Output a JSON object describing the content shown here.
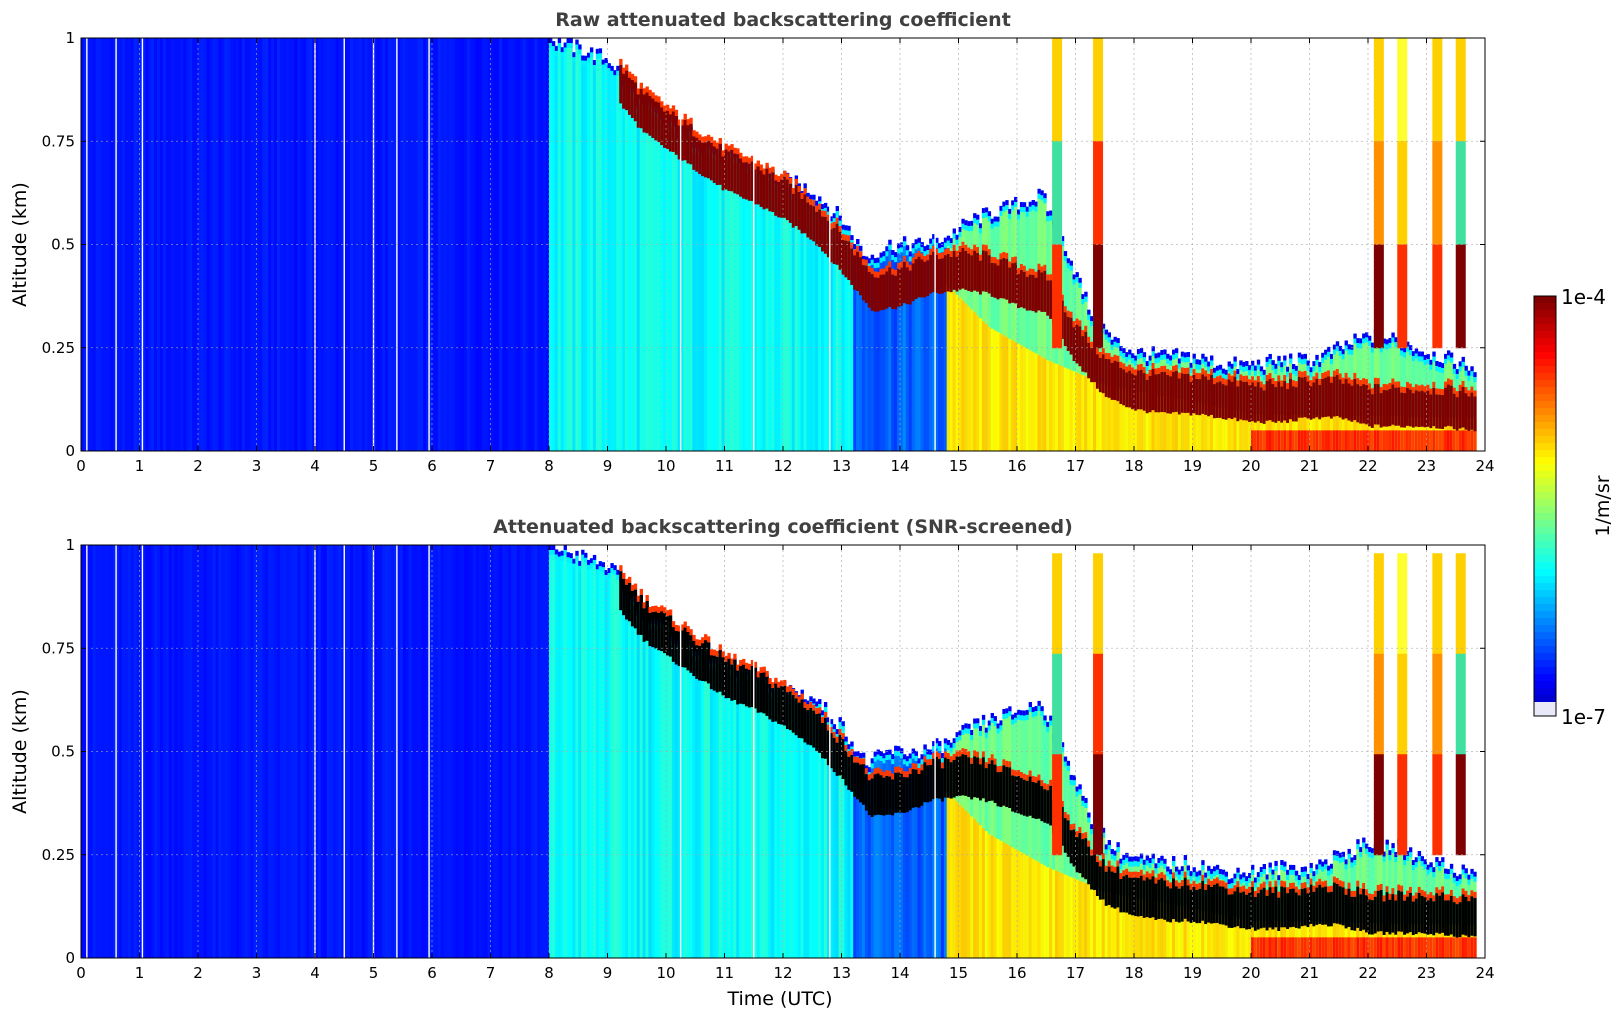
{
  "figure": {
    "x_axis_label": "Time (UTC)",
    "colorbar": {
      "label": "1/m/sr",
      "min_label": "1e-7",
      "max_label": "1e-4",
      "colormap": "jet",
      "scale": "log",
      "low_end_color": "#e8e8f8",
      "high_end_color": "#7f0000"
    }
  },
  "chart_data": [
    {
      "type": "heatmap",
      "title": "Raw attenuated backscattering coefficient",
      "xlabel": "",
      "ylabel": "Altitude (km)",
      "xlim": [
        0,
        24
      ],
      "ylim": [
        0,
        1
      ],
      "xticks": [
        "0",
        "1",
        "2",
        "3",
        "4",
        "5",
        "6",
        "7",
        "8",
        "9",
        "10",
        "11",
        "12",
        "13",
        "14",
        "15",
        "16",
        "17",
        "18",
        "19",
        "20",
        "21",
        "22",
        "23",
        "24"
      ],
      "yticks": [
        "0",
        "0.25",
        "0.5",
        "0.75",
        "1"
      ],
      "grid": true,
      "colorbar": "shared",
      "data_end_hour": 23.85,
      "dense_layer_color": "#7f0000",
      "layer_top_km": [
        [
          8.0,
          1.0
        ],
        [
          9.0,
          0.95
        ],
        [
          9.5,
          0.86
        ],
        [
          10.0,
          0.8
        ],
        [
          10.5,
          0.76
        ],
        [
          11.0,
          0.72
        ],
        [
          11.5,
          0.69
        ],
        [
          12.0,
          0.66
        ],
        [
          12.5,
          0.63
        ],
        [
          13.0,
          0.56
        ],
        [
          13.4,
          0.47
        ],
        [
          13.8,
          0.5
        ],
        [
          14.3,
          0.5
        ],
        [
          14.8,
          0.52
        ],
        [
          15.2,
          0.56
        ],
        [
          15.6,
          0.58
        ],
        [
          16.0,
          0.6
        ],
        [
          16.4,
          0.62
        ],
        [
          16.8,
          0.5
        ],
        [
          17.2,
          0.35
        ],
        [
          17.6,
          0.27
        ],
        [
          18.0,
          0.24
        ],
        [
          18.5,
          0.23
        ],
        [
          19.0,
          0.23
        ],
        [
          19.5,
          0.21
        ],
        [
          20.0,
          0.21
        ],
        [
          20.5,
          0.22
        ],
        [
          21.0,
          0.22
        ],
        [
          21.5,
          0.25
        ],
        [
          22.0,
          0.28
        ],
        [
          22.5,
          0.27
        ],
        [
          23.0,
          0.24
        ],
        [
          23.85,
          0.2
        ]
      ],
      "dense_layer_top_km": [
        [
          9.2,
          0.93
        ],
        [
          9.6,
          0.86
        ],
        [
          10.0,
          0.82
        ],
        [
          10.5,
          0.77
        ],
        [
          11.0,
          0.72
        ],
        [
          11.5,
          0.69
        ],
        [
          12.0,
          0.65
        ],
        [
          12.5,
          0.6
        ],
        [
          13.0,
          0.52
        ],
        [
          13.5,
          0.43
        ],
        [
          14.0,
          0.44
        ],
        [
          14.5,
          0.47
        ],
        [
          15.0,
          0.48
        ],
        [
          15.5,
          0.47
        ],
        [
          16.0,
          0.44
        ],
        [
          16.5,
          0.42
        ],
        [
          17.0,
          0.3
        ],
        [
          17.5,
          0.22
        ],
        [
          18.0,
          0.19
        ],
        [
          18.5,
          0.18
        ],
        [
          19.0,
          0.18
        ],
        [
          19.5,
          0.17
        ],
        [
          20.0,
          0.16
        ],
        [
          20.5,
          0.16
        ],
        [
          21.0,
          0.17
        ],
        [
          21.5,
          0.17
        ],
        [
          22.0,
          0.15
        ],
        [
          22.5,
          0.15
        ],
        [
          23.0,
          0.15
        ],
        [
          23.85,
          0.14
        ]
      ],
      "dense_layer_thickness_km": 0.08,
      "yellow_aerosol_region": {
        "start_hour": 14.8,
        "top_km": [
          [
            14.8,
            0.4
          ],
          [
            15.5,
            0.3
          ],
          [
            16.5,
            0.22
          ],
          [
            17.5,
            0.16
          ],
          [
            19.0,
            0.12
          ],
          [
            20.0,
            0.09
          ],
          [
            23.85,
            0.08
          ]
        ]
      },
      "orange_surface_region": {
        "start_hour": 20.0,
        "top_km": 0.05
      },
      "highlighted_columns": [
        {
          "hour": 16.6,
          "colors": [
            "#ffd000",
            "#40e0a0",
            "#ff3000"
          ]
        },
        {
          "hour": 17.3,
          "colors": [
            "#ffd000",
            "#ff3000",
            "#7f0000"
          ]
        },
        {
          "hour": 22.1,
          "colors": [
            "#ffd000",
            "#ff9000",
            "#7f0000"
          ]
        },
        {
          "hour": 22.5,
          "colors": [
            "#ffff30",
            "#ffd000",
            "#ff3000"
          ]
        },
        {
          "hour": 23.1,
          "colors": [
            "#ffd000",
            "#ff9000",
            "#ff3000"
          ]
        },
        {
          "hour": 23.5,
          "colors": [
            "#ffd000",
            "#40e0a0",
            "#7f0000"
          ]
        }
      ],
      "missing_data_hours": [
        0.1,
        0.6,
        1.05,
        4.0,
        4.5,
        5.0,
        5.4,
        5.95,
        10.25,
        11.5,
        12.8,
        14.6
      ]
    },
    {
      "type": "heatmap",
      "title": "Attenuated backscattering coefficient (SNR-screened)",
      "xlabel": "Time (UTC)",
      "ylabel": "Altitude (km)",
      "xlim": [
        0,
        24
      ],
      "ylim": [
        0,
        1
      ],
      "xticks": [
        "0",
        "1",
        "2",
        "3",
        "4",
        "5",
        "6",
        "7",
        "8",
        "9",
        "10",
        "11",
        "12",
        "13",
        "14",
        "15",
        "16",
        "17",
        "18",
        "19",
        "20",
        "21",
        "22",
        "23",
        "24"
      ],
      "yticks": [
        "0",
        "0.25",
        "0.5",
        "0.75",
        "1"
      ],
      "grid": true,
      "colorbar": "shared",
      "data_end_hour": 23.85,
      "dense_layer_color": "#000000",
      "layer_top_km": [
        [
          8.0,
          1.0
        ],
        [
          9.0,
          0.95
        ],
        [
          9.5,
          0.86
        ],
        [
          10.0,
          0.8
        ],
        [
          10.5,
          0.76
        ],
        [
          11.0,
          0.72
        ],
        [
          11.5,
          0.69
        ],
        [
          12.0,
          0.66
        ],
        [
          12.5,
          0.63
        ],
        [
          13.0,
          0.56
        ],
        [
          13.4,
          0.47
        ],
        [
          13.8,
          0.5
        ],
        [
          14.3,
          0.5
        ],
        [
          14.8,
          0.52
        ],
        [
          15.2,
          0.56
        ],
        [
          15.6,
          0.58
        ],
        [
          16.0,
          0.6
        ],
        [
          16.4,
          0.62
        ],
        [
          16.8,
          0.5
        ],
        [
          17.2,
          0.35
        ],
        [
          17.6,
          0.27
        ],
        [
          18.0,
          0.24
        ],
        [
          18.5,
          0.23
        ],
        [
          19.0,
          0.23
        ],
        [
          19.5,
          0.21
        ],
        [
          20.0,
          0.21
        ],
        [
          20.5,
          0.22
        ],
        [
          21.0,
          0.22
        ],
        [
          21.5,
          0.25
        ],
        [
          22.0,
          0.28
        ],
        [
          22.5,
          0.27
        ],
        [
          23.0,
          0.24
        ],
        [
          23.85,
          0.2
        ]
      ],
      "dense_layer_top_km": [
        [
          9.2,
          0.93
        ],
        [
          9.6,
          0.86
        ],
        [
          10.0,
          0.82
        ],
        [
          10.5,
          0.77
        ],
        [
          11.0,
          0.72
        ],
        [
          11.5,
          0.69
        ],
        [
          12.0,
          0.65
        ],
        [
          12.5,
          0.6
        ],
        [
          13.0,
          0.52
        ],
        [
          13.5,
          0.43
        ],
        [
          14.0,
          0.44
        ],
        [
          14.5,
          0.47
        ],
        [
          15.0,
          0.48
        ],
        [
          15.5,
          0.47
        ],
        [
          16.0,
          0.44
        ],
        [
          16.5,
          0.42
        ],
        [
          17.0,
          0.3
        ],
        [
          17.5,
          0.22
        ],
        [
          18.0,
          0.19
        ],
        [
          18.5,
          0.18
        ],
        [
          19.0,
          0.18
        ],
        [
          19.5,
          0.17
        ],
        [
          20.0,
          0.16
        ],
        [
          20.5,
          0.16
        ],
        [
          21.0,
          0.17
        ],
        [
          21.5,
          0.17
        ],
        [
          22.0,
          0.15
        ],
        [
          22.5,
          0.15
        ],
        [
          23.0,
          0.15
        ],
        [
          23.85,
          0.14
        ]
      ],
      "dense_layer_thickness_km": 0.08,
      "yellow_aerosol_region": {
        "start_hour": 14.8,
        "top_km": [
          [
            14.8,
            0.4
          ],
          [
            15.5,
            0.3
          ],
          [
            16.5,
            0.22
          ],
          [
            17.5,
            0.16
          ],
          [
            19.0,
            0.12
          ],
          [
            20.0,
            0.09
          ],
          [
            23.85,
            0.08
          ]
        ]
      },
      "orange_surface_region": {
        "start_hour": 20.0,
        "top_km": 0.05
      },
      "highlighted_columns": [
        {
          "hour": 16.6,
          "colors": [
            "#ffd000",
            "#40e0a0",
            "#ff3000"
          ]
        },
        {
          "hour": 17.3,
          "colors": [
            "#ffd000",
            "#ff3000",
            "#7f0000"
          ]
        },
        {
          "hour": 22.1,
          "colors": [
            "#ffd000",
            "#ff9000",
            "#7f0000"
          ]
        },
        {
          "hour": 22.5,
          "colors": [
            "#ffff30",
            "#ffd000",
            "#ff3000"
          ]
        },
        {
          "hour": 23.1,
          "colors": [
            "#ffd000",
            "#ff9000",
            "#ff3000"
          ]
        },
        {
          "hour": 23.5,
          "colors": [
            "#ffd000",
            "#40e0a0",
            "#7f0000"
          ]
        }
      ],
      "missing_data_hours": [
        0.1,
        0.6,
        1.05,
        4.0,
        4.5,
        5.0,
        5.4,
        5.95,
        10.25,
        11.5,
        12.8,
        14.6
      ]
    }
  ]
}
